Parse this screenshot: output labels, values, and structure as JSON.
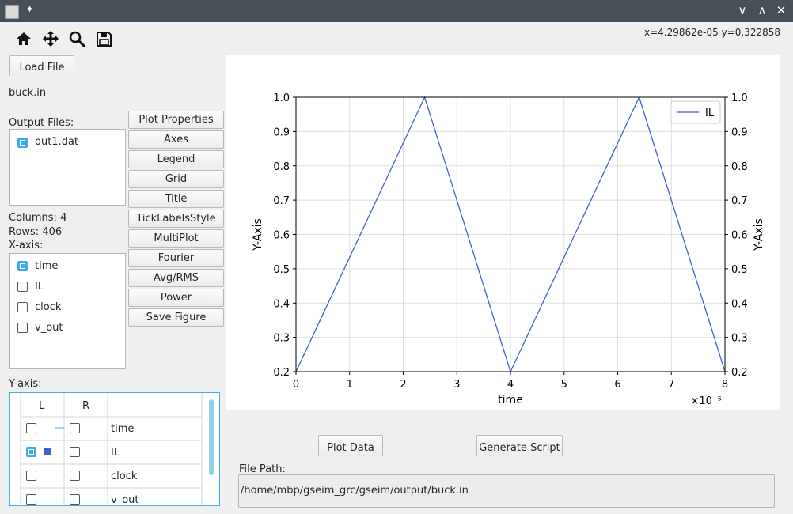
{
  "window": {
    "pin_glyph": "✦",
    "minimize_glyph": "∨",
    "maximize_glyph": "∧",
    "close_glyph": "✕"
  },
  "toolbar": {
    "icons": [
      "home-icon",
      "move-icon",
      "zoom-icon",
      "save-icon"
    ]
  },
  "coords": "x=4.29862e-05  y=0.322858",
  "load_file_label": "Load File",
  "file_name": "buck.in",
  "output_files_label": "Output Files:",
  "output_files": [
    {
      "name": "out1.dat",
      "checked": true
    }
  ],
  "columns_text": "Columns: 4",
  "rows_text": "Rows: 406",
  "xaxis_label": "X-axis:",
  "xaxis_items": [
    {
      "name": "time",
      "checked": true
    },
    {
      "name": "IL",
      "checked": false
    },
    {
      "name": "clock",
      "checked": false
    },
    {
      "name": "v_out",
      "checked": false
    }
  ],
  "side_buttons": [
    "Plot Properties",
    "Axes",
    "Legend",
    "Grid",
    "Title",
    "TickLabelsStyle",
    "MultiPlot",
    "Fourier",
    "Avg/RMS",
    "Power",
    "Save Figure"
  ],
  "yaxis_label": "Y-axis:",
  "yaxis_table": {
    "headers": [
      "L",
      "R",
      ""
    ],
    "rows": [
      {
        "name": "time",
        "L": false,
        "R": false
      },
      {
        "name": "IL",
        "L": true,
        "R": false
      },
      {
        "name": "clock",
        "L": false,
        "R": false
      },
      {
        "name": "v_out",
        "L": false,
        "R": false
      }
    ]
  },
  "plot_data_label": "Plot Data",
  "generate_script_label": "Generate Script",
  "file_path_label": "File Path:",
  "file_path": "/home/mbp/gseim_grc/gseim/output/buck.in",
  "colors": {
    "series": "#4060d8",
    "accent": "#3daee9",
    "titlebar": "#475057"
  },
  "chart_data": {
    "type": "line",
    "xlabel": "time",
    "ylabel": "Y-Axis",
    "ylabel_right": "Y-Axis",
    "x_scale_label": "×10⁻⁵",
    "xlim": [
      0,
      8
    ],
    "ylim": [
      0.2,
      1.0
    ],
    "xticks": [
      "0",
      "1",
      "2",
      "3",
      "4",
      "5",
      "6",
      "7",
      "8"
    ],
    "yticks": [
      "0.2",
      "0.3",
      "0.4",
      "0.5",
      "0.6",
      "0.7",
      "0.8",
      "0.9",
      "1.0"
    ],
    "grid": true,
    "legend_position": "top-right",
    "series": [
      {
        "name": "IL",
        "x": [
          0,
          2.4,
          4.0,
          6.4,
          8.0
        ],
        "y": [
          0.2,
          1.0,
          0.2,
          1.0,
          0.2
        ]
      }
    ]
  }
}
